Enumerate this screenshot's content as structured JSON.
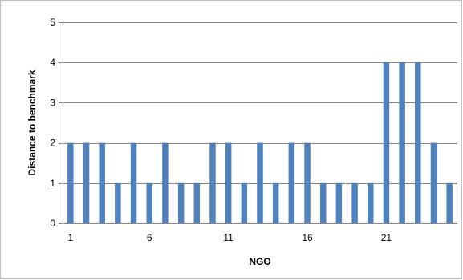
{
  "chart_data": {
    "type": "bar",
    "title": "",
    "xlabel": "NGO",
    "ylabel": "Distance to benchmark",
    "ylim": [
      0,
      5
    ],
    "yticks": [
      0,
      1,
      2,
      3,
      4,
      5
    ],
    "xtick_labels": [
      "1",
      "6",
      "11",
      "16",
      "21"
    ],
    "x": [
      1,
      2,
      3,
      4,
      5,
      6,
      7,
      8,
      9,
      10,
      11,
      12,
      13,
      14,
      15,
      16,
      17,
      18,
      19,
      20,
      21,
      22,
      23,
      24,
      25
    ],
    "values": [
      2,
      2,
      2,
      1,
      2,
      1,
      2,
      1,
      1,
      2,
      2,
      1,
      2,
      1,
      2,
      2,
      1,
      1,
      1,
      1,
      4,
      4,
      4,
      2,
      1
    ],
    "bar_color": "#4f81bd",
    "grid": true,
    "grid_color": "#868686"
  }
}
